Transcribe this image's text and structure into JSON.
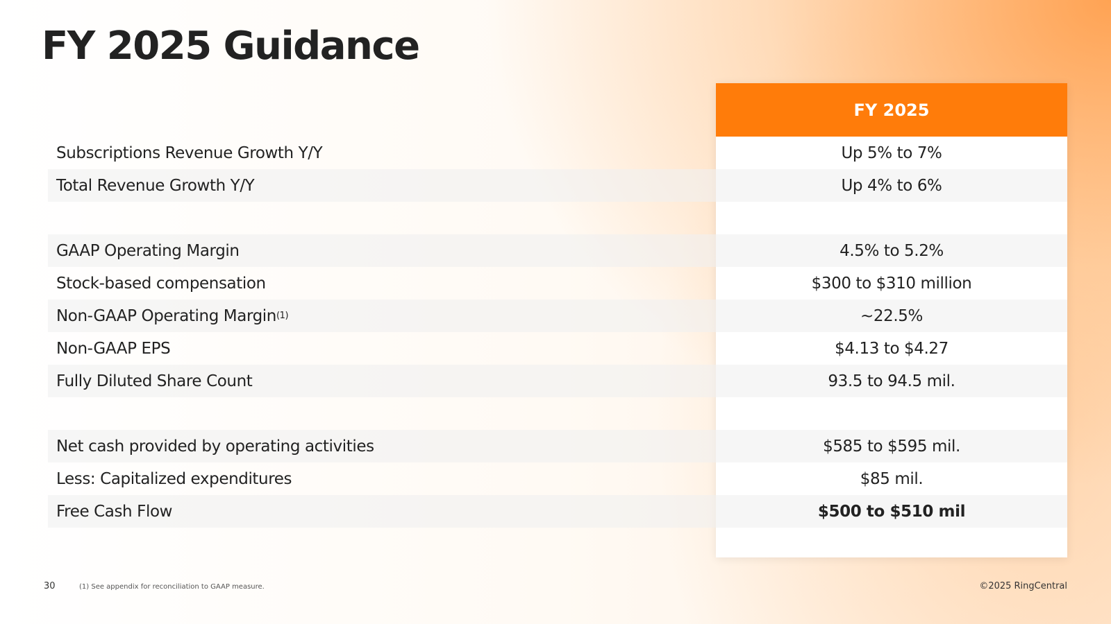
{
  "title": "FY 2025 Guidance",
  "table": {
    "header": "FY 2025",
    "groups": [
      [
        {
          "label": "Subscriptions Revenue Growth Y/Y",
          "value": "Up 5% to 7%"
        },
        {
          "label": "Total Revenue Growth Y/Y",
          "value": "Up 4% to 6%"
        }
      ],
      [
        {
          "label": "GAAP Operating Margin",
          "value": "4.5% to 5.2%"
        },
        {
          "label": "Stock-based compensation",
          "value": "$300 to $310 million"
        },
        {
          "label": "Non-GAAP Operating Margin",
          "note": "(1)",
          "value": "~22.5%"
        },
        {
          "label": "Non-GAAP EPS",
          "value": "$4.13 to $4.27"
        },
        {
          "label": "Fully Diluted Share Count",
          "value": "93.5 to 94.5 mil."
        }
      ],
      [
        {
          "label": "Net cash provided by operating activities",
          "value": "$585 to $595 mil."
        },
        {
          "label": "Less: Capitalized expenditures",
          "value": "$85 mil."
        },
        {
          "label": "Free Cash Flow",
          "value": "$500 to $510 mil",
          "bold": true
        }
      ]
    ]
  },
  "footer": {
    "page": "30",
    "footnote": "(1) See appendix for reconciliation to GAAP measure.",
    "copyright": "©2025 RingCentral"
  }
}
